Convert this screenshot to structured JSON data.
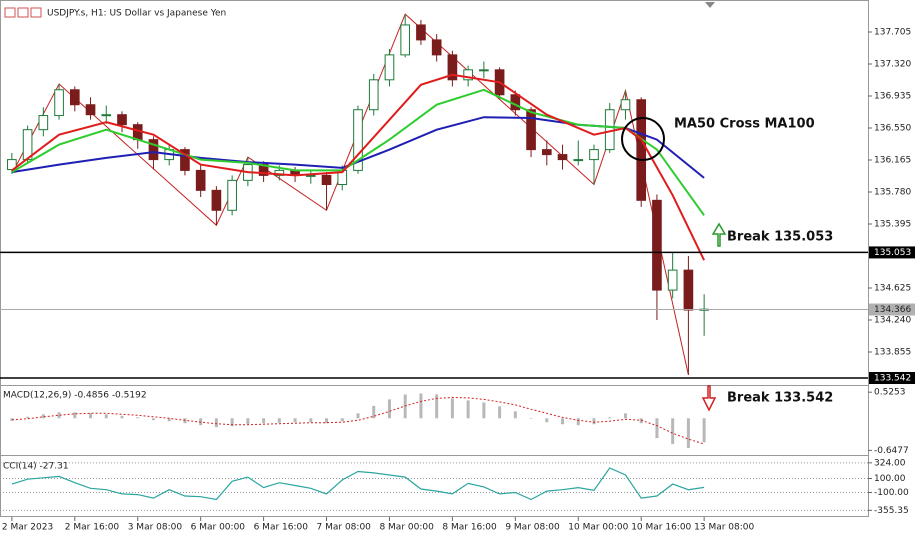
{
  "chart_data": [
    {
      "type": "candlestick",
      "title": "USDJPY.s, H1: US Dollar vs Japanese Yen",
      "bull_color": "#1f7a3a",
      "bear_color": "#7a1c1c",
      "xlim": [
        -0.5,
        44.5
      ],
      "xticks": [
        {
          "value": 0,
          "label": "2 Mar 2023"
        },
        {
          "value": 4,
          "label": "2 Mar 16:00"
        },
        {
          "value": 8,
          "label": "3 Mar 08:00"
        },
        {
          "value": 12,
          "label": "6 Mar 00:00"
        },
        {
          "value": 16,
          "label": "6 Mar 16:00"
        },
        {
          "value": 20,
          "label": "7 Mar 08:00"
        },
        {
          "value": 24,
          "label": "8 Mar 00:00"
        },
        {
          "value": 28,
          "label": "8 Mar 16:00"
        },
        {
          "value": 32,
          "label": "9 Mar 08:00"
        },
        {
          "value": 36,
          "label": "10 Mar 00:00"
        },
        {
          "value": 40,
          "label": "10 Mar 16:00"
        },
        {
          "value": 44,
          "label": "13 Mar 08:00"
        }
      ],
      "ylim": [
        133.47,
        138.03
      ],
      "yticks": [
        137.705,
        {
          "value": 137.32,
          "label": "137.320"
        },
        136.935,
        {
          "value": 136.55,
          "label": "136.550"
        },
        136.165,
        {
          "value": 135.78,
          "label": "135.780"
        },
        135.395,
        134.625,
        {
          "value": 134.24,
          "label": "134.240"
        },
        133.855
      ],
      "open": [
        136.05,
        136.17,
        136.53,
        136.7,
        137.01,
        136.83,
        136.71,
        136.71,
        136.59,
        136.41,
        136.17,
        136.29,
        136.04,
        135.8,
        135.56,
        135.92,
        136.11,
        135.98,
        136.04,
        135.98,
        135.98,
        135.87,
        136.04,
        136.77,
        137.13,
        137.43,
        137.79,
        137.61,
        137.43,
        137.13,
        137.25,
        137.25,
        136.95,
        136.77,
        136.29,
        136.23,
        136.17,
        136.17,
        136.29,
        136.77,
        136.89,
        135.68,
        134.6,
        134.84,
        134.36
      ],
      "high": [
        136.25,
        136.58,
        136.8,
        137.08,
        137.05,
        136.92,
        136.82,
        136.75,
        136.62,
        136.45,
        136.35,
        136.32,
        136.1,
        135.85,
        135.98,
        136.2,
        136.15,
        136.1,
        136.08,
        136.05,
        136.02,
        136.1,
        136.82,
        137.2,
        137.5,
        137.92,
        137.85,
        137.68,
        137.48,
        137.3,
        137.35,
        137.28,
        137.0,
        136.8,
        136.4,
        136.35,
        136.4,
        136.35,
        136.85,
        137.0,
        136.92,
        135.75,
        135.05,
        135.01,
        134.55
      ],
      "low": [
        136.0,
        136.12,
        136.45,
        136.65,
        136.75,
        136.65,
        136.6,
        136.5,
        136.3,
        136.05,
        136.1,
        135.98,
        135.72,
        135.38,
        135.5,
        135.85,
        135.9,
        135.92,
        135.9,
        135.88,
        135.56,
        135.8,
        136.0,
        136.7,
        137.05,
        137.4,
        137.55,
        137.35,
        137.05,
        137.05,
        137.15,
        136.9,
        136.7,
        136.2,
        136.1,
        136.05,
        136.1,
        135.87,
        136.25,
        136.65,
        135.6,
        134.24,
        134.5,
        133.58,
        134.05
      ],
      "close": [
        136.17,
        136.53,
        136.7,
        137.01,
        136.83,
        136.71,
        136.71,
        136.59,
        136.41,
        136.17,
        136.29,
        136.04,
        135.8,
        135.56,
        135.92,
        136.11,
        135.98,
        136.04,
        135.98,
        135.98,
        135.87,
        136.04,
        136.77,
        137.13,
        137.43,
        137.79,
        137.61,
        137.43,
        137.13,
        137.25,
        137.25,
        136.95,
        136.77,
        136.29,
        136.23,
        136.17,
        136.17,
        136.29,
        136.77,
        136.89,
        135.68,
        134.6,
        134.84,
        134.36,
        134.37
      ],
      "series": [
        {
          "color": "#1f1fb4",
          "x": [
            0,
            3,
            6,
            9,
            12,
            15,
            18,
            21,
            24,
            27,
            30,
            33,
            36,
            39,
            41,
            44
          ],
          "values": [
            136.02,
            136.11,
            136.19,
            136.26,
            136.19,
            136.14,
            136.11,
            136.07,
            136.29,
            136.53,
            136.68,
            136.67,
            136.59,
            136.55,
            136.41,
            135.95
          ]
        },
        {
          "color": "#2ecc2e",
          "x": [
            0,
            3,
            6,
            9,
            12,
            15,
            18,
            21,
            24,
            27,
            30,
            33,
            36,
            39,
            41,
            44
          ],
          "values": [
            136.02,
            136.35,
            136.53,
            136.35,
            136.17,
            136.13,
            136.04,
            136.04,
            136.41,
            136.83,
            137.01,
            136.74,
            136.59,
            136.55,
            136.29,
            135.5
          ]
        },
        {
          "color": "#e01c1c",
          "x": [
            0,
            3,
            6,
            9,
            12,
            15,
            18,
            21,
            24,
            26,
            28,
            31,
            34,
            37,
            39,
            40,
            42,
            44
          ],
          "values": [
            136.04,
            136.47,
            136.62,
            136.47,
            136.11,
            136.02,
            135.98,
            136.02,
            136.65,
            137.07,
            137.19,
            137.1,
            136.71,
            136.47,
            136.55,
            136.41,
            135.74,
            134.96
          ]
        }
      ],
      "zigzag": {
        "color": "#c42020",
        "x": [
          0,
          3,
          13,
          15,
          20,
          25,
          37,
          39,
          43
        ],
        "values": [
          136.0,
          137.08,
          135.38,
          136.2,
          135.56,
          137.92,
          135.87,
          137.0,
          133.58
        ]
      },
      "hlines": [
        135.053,
        133.542
      ],
      "current_price": 134.366,
      "annotations": [
        "MA50 Cross MA100",
        "Break 135.053",
        "Break 133.542"
      ]
    },
    {
      "type": "macd",
      "title": "MACD(12,26,9) -0.4856 -0.5192",
      "ylim": [
        -0.7,
        0.61
      ],
      "yticks": [
        0.5253,
        -0.6477
      ],
      "histogram": [
        -0.05,
        0.03,
        0.08,
        0.12,
        0.12,
        0.1,
        0.08,
        0.05,
        0.02,
        -0.04,
        -0.06,
        -0.1,
        -0.14,
        -0.18,
        -0.16,
        -0.12,
        -0.1,
        -0.09,
        -0.08,
        -0.08,
        -0.1,
        -0.06,
        0.1,
        0.25,
        0.38,
        0.48,
        0.5,
        0.48,
        0.4,
        0.36,
        0.32,
        0.24,
        0.14,
        0.0,
        -0.08,
        -0.12,
        -0.14,
        -0.12,
        0.02,
        0.1,
        -0.1,
        -0.4,
        -0.52,
        -0.6,
        -0.4856
      ],
      "signal": [
        -0.03,
        -0.01,
        0.03,
        0.06,
        0.09,
        0.1,
        0.1,
        0.08,
        0.06,
        0.03,
        0.0,
        -0.04,
        -0.08,
        -0.11,
        -0.13,
        -0.13,
        -0.12,
        -0.11,
        -0.1,
        -0.09,
        -0.09,
        -0.08,
        -0.04,
        0.04,
        0.14,
        0.25,
        0.34,
        0.4,
        0.42,
        0.41,
        0.38,
        0.33,
        0.27,
        0.18,
        0.1,
        0.02,
        -0.04,
        -0.08,
        -0.06,
        -0.02,
        -0.04,
        -0.15,
        -0.3,
        -0.42,
        -0.5192
      ],
      "histogram_color": "#b8b8b8",
      "signal_color": "#d02020"
    },
    {
      "type": "cci",
      "title": "CCI(14) -27.31",
      "ylim": [
        -436,
        393
      ],
      "yticks": [
        {
          "value": 324,
          "label": "324.00"
        },
        {
          "value": 100,
          "label": "100.00"
        },
        {
          "value": -100,
          "label": "-100.00"
        },
        -355.35
      ],
      "grid": "dotted",
      "color": "#2aa5a0",
      "values": [
        20,
        90,
        110,
        130,
        40,
        -40,
        -60,
        -120,
        -130,
        -180,
        -60,
        -150,
        -160,
        -200,
        60,
        120,
        -30,
        40,
        0,
        -40,
        -120,
        80,
        200,
        180,
        150,
        120,
        -50,
        -80,
        -120,
        30,
        -20,
        -120,
        -100,
        -200,
        -80,
        -60,
        -30,
        -70,
        250,
        150,
        -180,
        -150,
        20,
        -60,
        -27.31
      ]
    }
  ]
}
